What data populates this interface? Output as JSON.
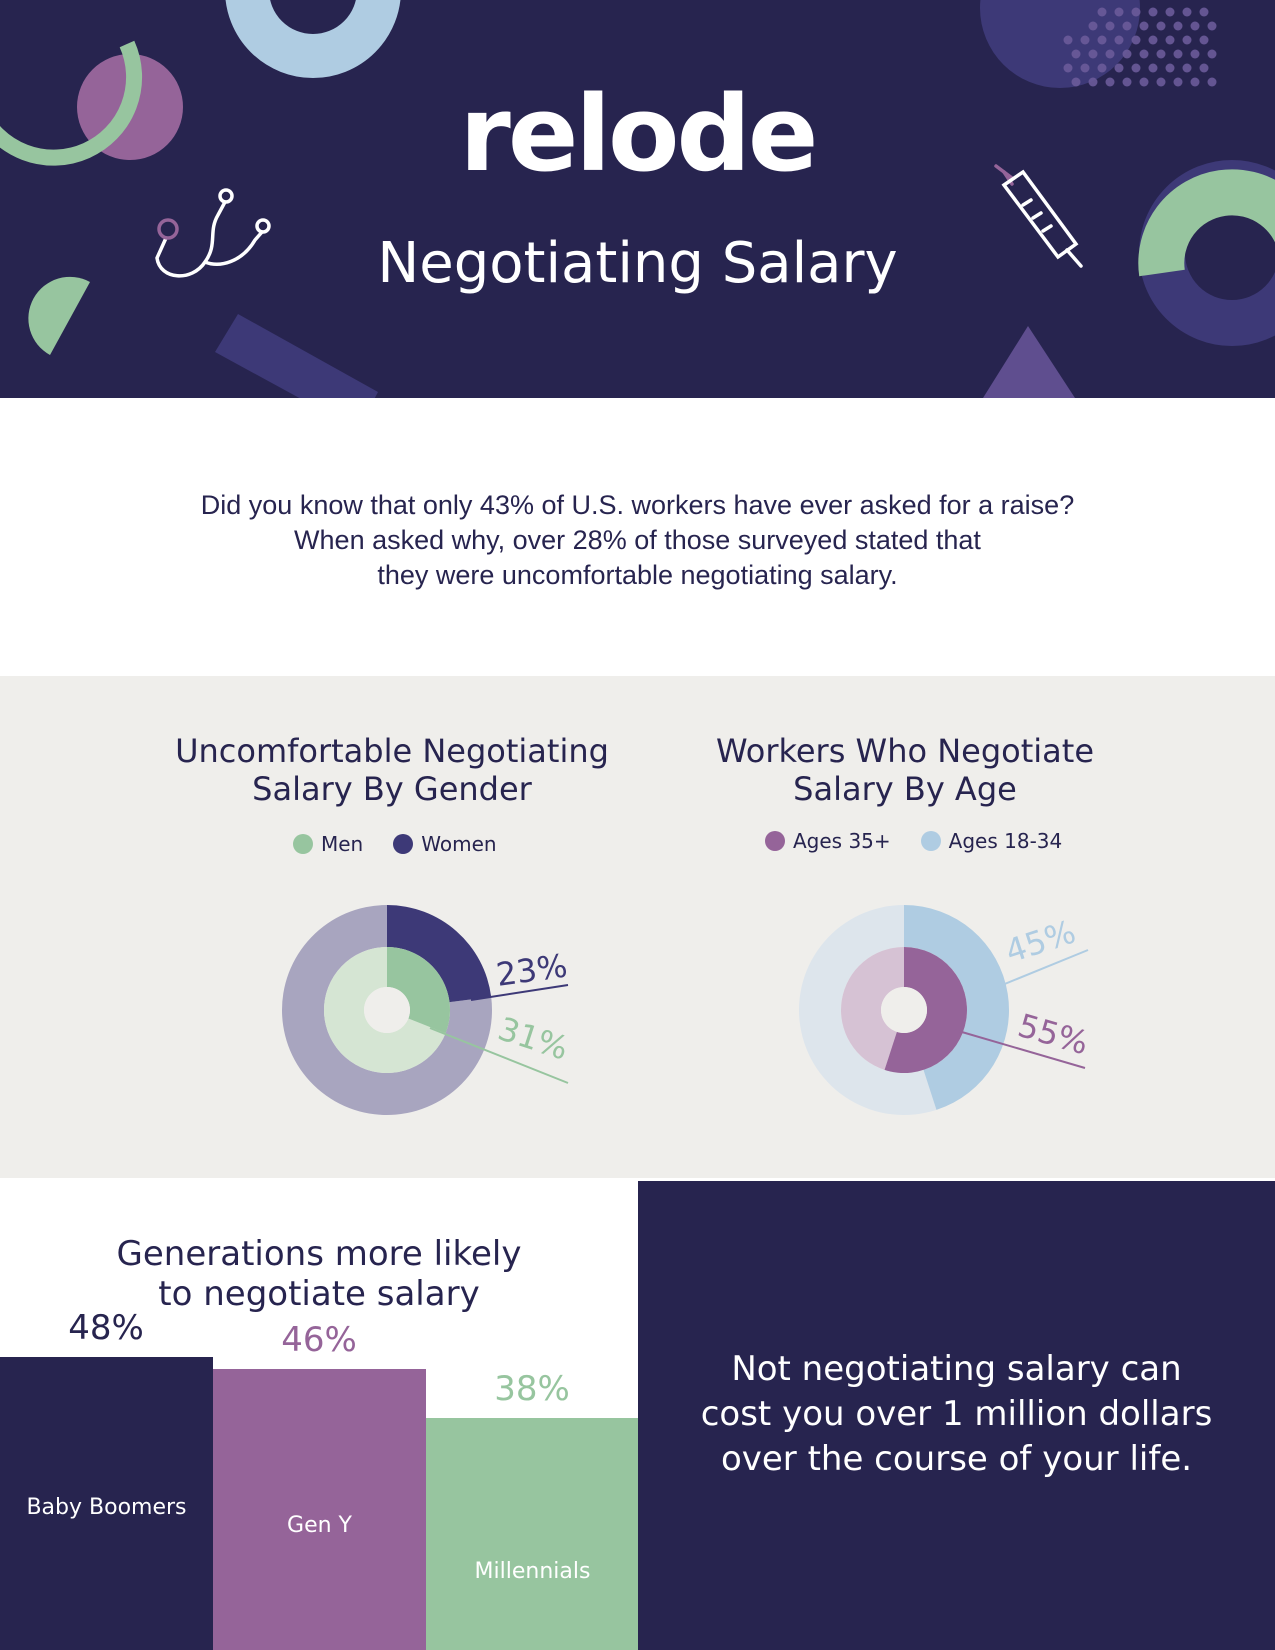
{
  "header": {
    "logo": "relode",
    "title": "Negotiating Salary",
    "icons": [
      "stethoscope-icon",
      "syringe-icon"
    ]
  },
  "intro": {
    "lines": [
      "Did you know that only 43% of U.S. workers have ever asked for a raise?",
      "When asked why, over 28% of those surveyed stated that",
      "they were uncomfortable negotiating salary."
    ]
  },
  "colors": {
    "navy": "#27244f",
    "indigo": "#3d3977",
    "green": "#97c59f",
    "purple": "#956499",
    "light_blue": "#afcce2",
    "band_gray": "#efeeeb"
  },
  "chart_data": [
    {
      "type": "pie",
      "title": "Uncomfortable Negotiating Salary By Gender",
      "title_lines": [
        "Uncomfortable Negotiating",
        "Salary By Gender"
      ],
      "legend": [
        {
          "label": "Men",
          "color": "#97c59f"
        },
        {
          "label": "Women",
          "color": "#3d3977"
        }
      ],
      "series": [
        {
          "name": "Women",
          "value": 23,
          "label": "23%",
          "ring": "outer",
          "color": "#3d3977",
          "rest_color": "#a8a5bf"
        },
        {
          "name": "Men",
          "value": 31,
          "label": "31%",
          "ring": "inner",
          "color": "#97c59f",
          "rest_color": "#d5e5d3"
        }
      ]
    },
    {
      "type": "pie",
      "title": "Workers Who Negotiate Salary By Age",
      "title_lines": [
        "Workers Who Negotiate",
        "Salary By Age"
      ],
      "legend": [
        {
          "label": "Ages 35+",
          "color": "#956499"
        },
        {
          "label": "Ages 18-34",
          "color": "#afcce2"
        }
      ],
      "series": [
        {
          "name": "Ages 18-34",
          "value": 45,
          "label": "45%",
          "ring": "outer",
          "color": "#afcce2",
          "rest_color": "#dde5ec"
        },
        {
          "name": "Ages 35+",
          "value": 55,
          "label": "55%",
          "ring": "inner",
          "color": "#956499",
          "rest_color": "#d6c2d4"
        }
      ]
    },
    {
      "type": "bar",
      "title": "Generations more likely to negotiate salary",
      "title_lines": [
        "Generations more likely",
        "to negotiate salary"
      ],
      "categories": [
        "Baby Boomers",
        "Gen Y",
        "Millennials"
      ],
      "values": [
        48,
        46,
        38
      ],
      "value_labels": [
        "48%",
        "46%",
        "38%"
      ],
      "colors": [
        "#27244f",
        "#956499",
        "#97c59f"
      ]
    }
  ],
  "callout": {
    "lines": [
      "Not negotiating salary can",
      "cost you over 1 million dollars",
      "over the course of your life."
    ]
  }
}
